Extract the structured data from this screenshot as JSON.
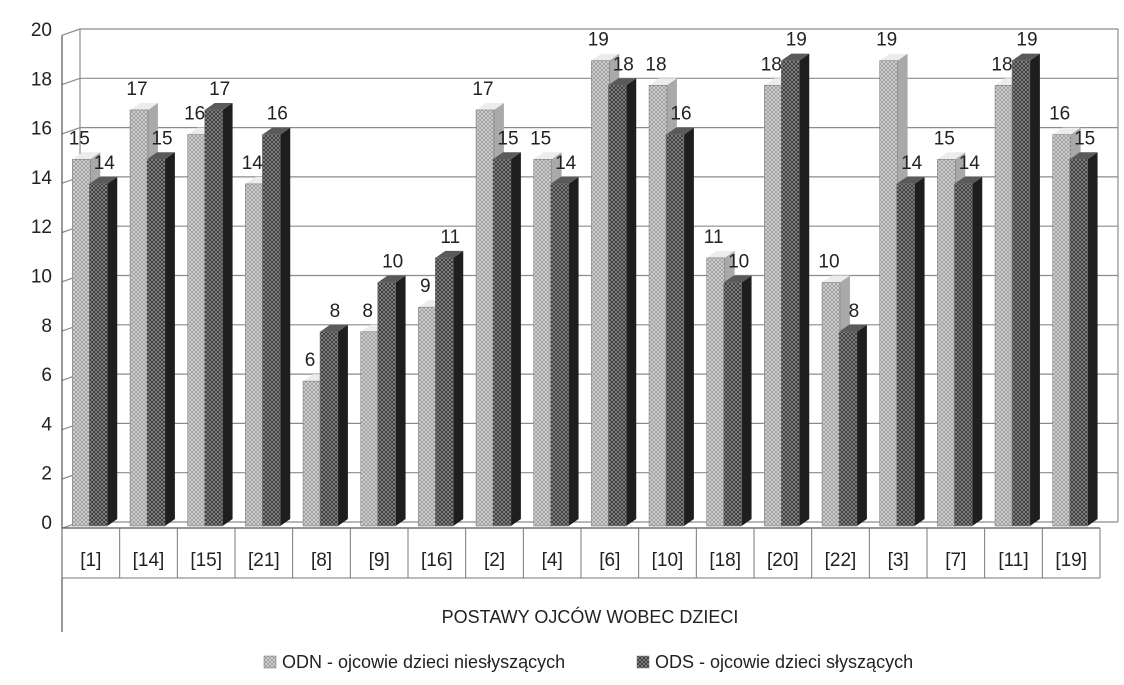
{
  "chart_data": {
    "type": "bar",
    "style": "3d-clustered-column",
    "title": "",
    "xlabel": "POSTAWY OJCÓW WOBEC DZIECI",
    "ylabel": "",
    "ylim": [
      0,
      20
    ],
    "yticks": [
      0,
      2,
      4,
      6,
      8,
      10,
      12,
      14,
      16,
      18,
      20
    ],
    "grid": true,
    "legend_position": "bottom",
    "categories": [
      "[1]",
      "[14]",
      "[15]",
      "[21]",
      "[8]",
      "[9]",
      "[16]",
      "[2]",
      "[4]",
      "[6]",
      "[10]",
      "[18]",
      "[20]",
      "[22]",
      "[3]",
      "[7]",
      "[11]",
      "[19]"
    ],
    "series": [
      {
        "name": "ODN - ojcowie dzieci niesłyszących",
        "color": "#cfcfcf",
        "values": [
          15,
          17,
          16,
          14,
          6,
          8,
          9,
          17,
          15,
          19,
          18,
          11,
          18,
          10,
          19,
          15,
          18,
          16
        ]
      },
      {
        "name": "ODS - ojcowie dzieci słyszących",
        "color": "#3a3a3a",
        "values": [
          14,
          15,
          17,
          16,
          8,
          10,
          11,
          15,
          14,
          18,
          16,
          10,
          19,
          8,
          14,
          14,
          19,
          15
        ]
      }
    ]
  }
}
